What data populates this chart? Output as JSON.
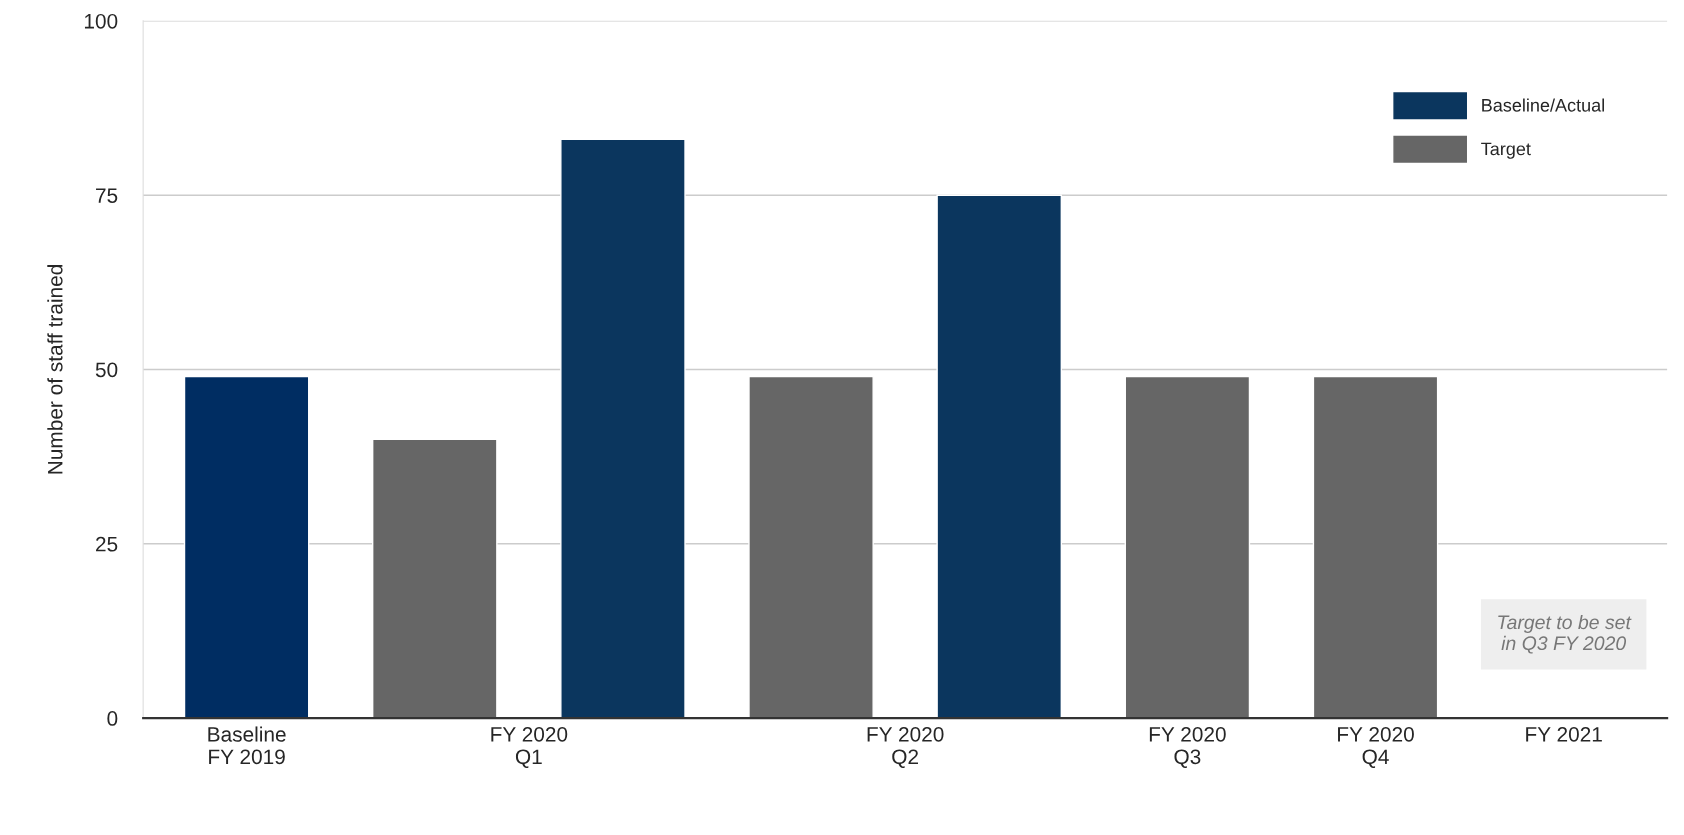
{
  "chart_data": {
    "type": "bar",
    "ylabel": "Number of staff trained",
    "categories": [
      "Baseline\nFY 2019",
      "FY 2020\nQ1",
      "FY 2020\nQ2",
      "FY 2020\nQ3",
      "FY 2020\nQ4",
      "FY 2021"
    ],
    "series": [
      {
        "name": "Baseline/Actual",
        "color": "#0b365e",
        "colors": [
          "#002d62",
          "#0b365e",
          "#0b365e",
          null,
          null,
          null
        ],
        "values": [
          49,
          83,
          75,
          null,
          null,
          null
        ]
      },
      {
        "name": "Target",
        "color": "#666666",
        "values": [
          null,
          40,
          49,
          49,
          49,
          null
        ]
      }
    ],
    "ylim": [
      0,
      100
    ],
    "yticks": [
      0,
      25,
      50,
      75,
      100
    ],
    "grid": "y",
    "legend": "top right",
    "annotations": [
      "Target to be set\nin Q3 FY 2020"
    ]
  }
}
